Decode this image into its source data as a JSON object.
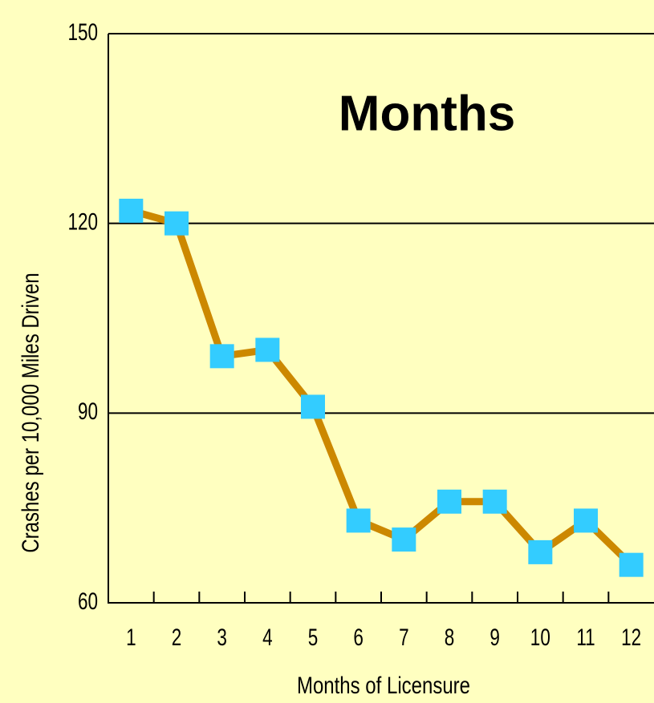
{
  "chart_data": {
    "type": "line",
    "annotation": "Months",
    "x_label": "Months of Licensure",
    "y_label": "Crashes per 10,000 Miles Driven",
    "categories": [
      "1",
      "2",
      "3",
      "4",
      "5",
      "6",
      "7",
      "8",
      "9",
      "10",
      "11",
      "12"
    ],
    "series": [
      {
        "color": "#cc8800",
        "marker_color": "#33ccff",
        "values": [
          122,
          120,
          99,
          100,
          91,
          73,
          70,
          76,
          76,
          68,
          73,
          66
        ]
      }
    ],
    "ylim": [
      60,
      150
    ],
    "yticks": [
      60,
      90,
      120,
      150
    ],
    "grid": true
  }
}
